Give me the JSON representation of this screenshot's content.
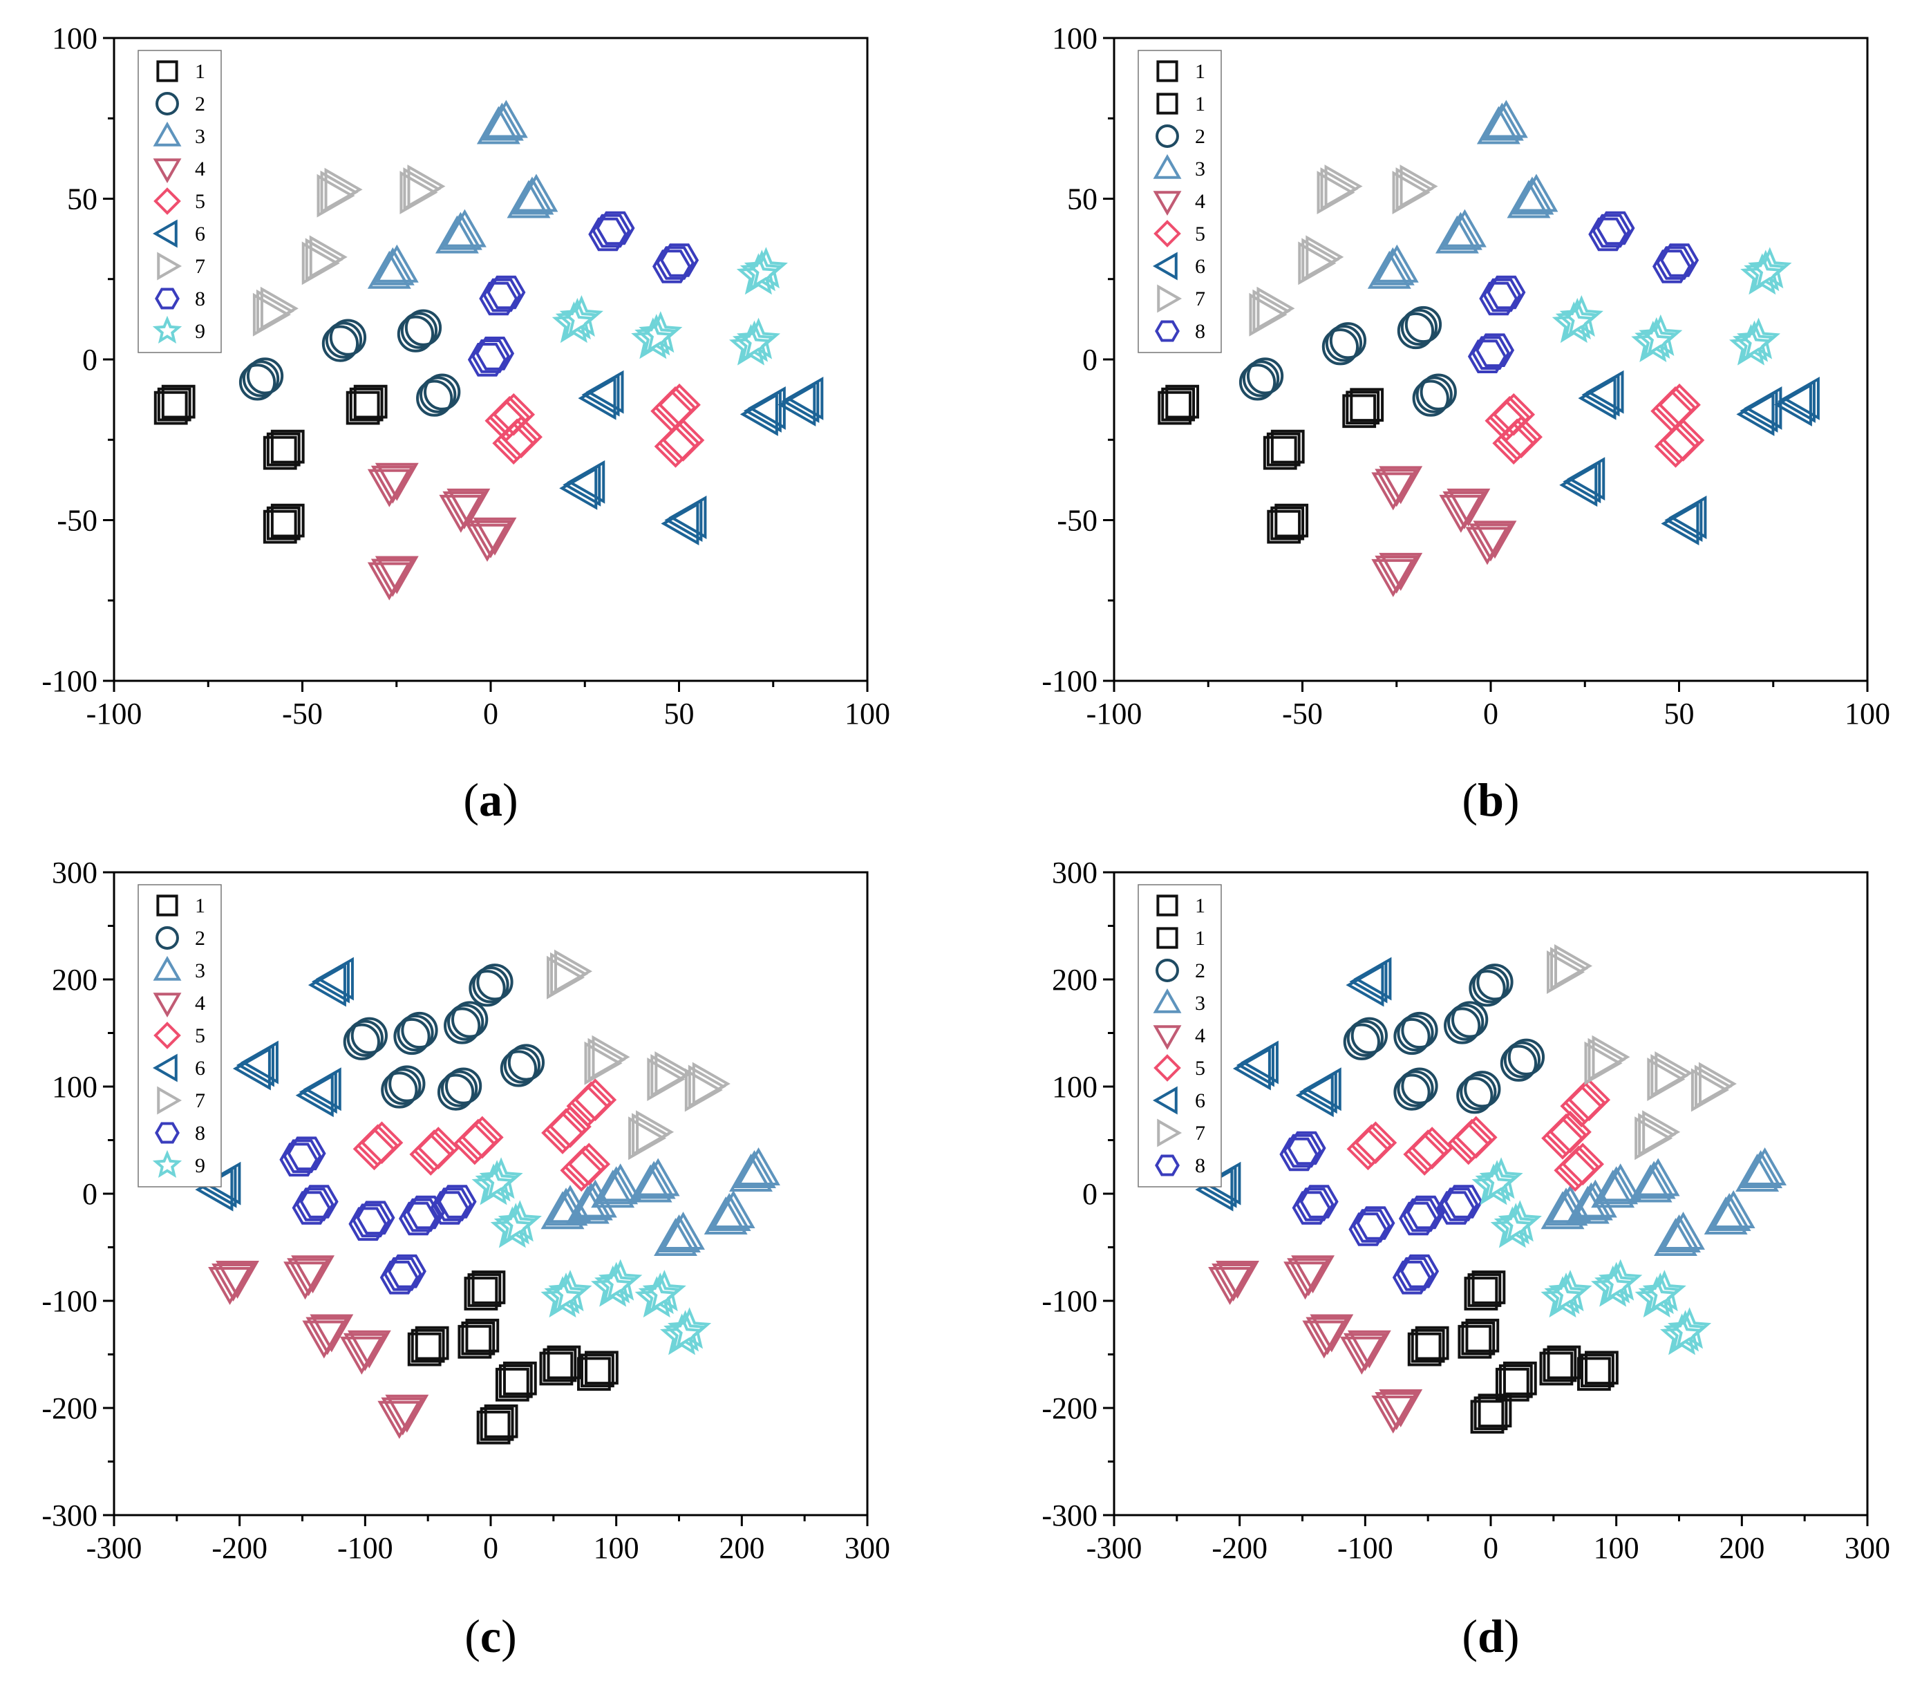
{
  "colors": {
    "1": "#111111",
    "2": "#1f4b63",
    "3": "#5e94bd",
    "4": "#c15b74",
    "5": "#ef4e6e",
    "6": "#1c6396",
    "7": "#b3b3b3",
    "8": "#3a3dbd",
    "9": "#6fd4d8"
  },
  "marker_shapes": {
    "1": "square",
    "2": "circle",
    "3": "triangle-up",
    "4": "triangle-down",
    "5": "diamond",
    "6": "triangle-left",
    "7": "triangle-right",
    "8": "hexagon",
    "9": "star"
  },
  "chart_data": [
    {
      "panel": "a",
      "caption_letter": "a",
      "type": "scatter",
      "xlim": [
        -100,
        100
      ],
      "ylim": [
        -100,
        100
      ],
      "xticks": [
        -100,
        -50,
        0,
        50,
        100
      ],
      "yticks": [
        -100,
        -50,
        0,
        50,
        100
      ],
      "legend": {
        "placement": "top-left",
        "entries": [
          {
            "label": "1",
            "cls": "1"
          },
          {
            "label": "2",
            "cls": "2"
          },
          {
            "label": "3",
            "cls": "3"
          },
          {
            "label": "4",
            "cls": "4"
          },
          {
            "label": "5",
            "cls": "5"
          },
          {
            "label": "6",
            "cls": "6"
          },
          {
            "label": "7",
            "cls": "7"
          },
          {
            "label": "8",
            "cls": "8"
          },
          {
            "label": "9",
            "cls": "9"
          }
        ]
      },
      "clusters": [
        {
          "cls": "1",
          "x": -84,
          "y": -14
        },
        {
          "cls": "1",
          "x": -55,
          "y": -28
        },
        {
          "cls": "1",
          "x": -33,
          "y": -14
        },
        {
          "cls": "1",
          "x": -55,
          "y": -51
        },
        {
          "cls": "2",
          "x": -61,
          "y": -6
        },
        {
          "cls": "2",
          "x": -39,
          "y": 6
        },
        {
          "cls": "2",
          "x": -19,
          "y": 9
        },
        {
          "cls": "2",
          "x": -14,
          "y": -11
        },
        {
          "cls": "3",
          "x": 3,
          "y": 73
        },
        {
          "cls": "3",
          "x": 11,
          "y": 50
        },
        {
          "cls": "3",
          "x": -8,
          "y": 39
        },
        {
          "cls": "3",
          "x": -26,
          "y": 28
        },
        {
          "cls": "4",
          "x": -26,
          "y": -38
        },
        {
          "cls": "4",
          "x": -26,
          "y": -67
        },
        {
          "cls": "4",
          "x": -7,
          "y": -46
        },
        {
          "cls": "4",
          "x": 0,
          "y": -55
        },
        {
          "cls": "5",
          "x": 5,
          "y": -18
        },
        {
          "cls": "5",
          "x": 7,
          "y": -25
        },
        {
          "cls": "5",
          "x": 49,
          "y": -15
        },
        {
          "cls": "5",
          "x": 50,
          "y": -26
        },
        {
          "cls": "6",
          "x": 30,
          "y": -11
        },
        {
          "cls": "6",
          "x": 25,
          "y": -39
        },
        {
          "cls": "6",
          "x": 73,
          "y": -16
        },
        {
          "cls": "6",
          "x": 83,
          "y": -13
        },
        {
          "cls": "6",
          "x": 52,
          "y": -50
        },
        {
          "cls": "7",
          "x": -58,
          "y": 15
        },
        {
          "cls": "7",
          "x": -45,
          "y": 31
        },
        {
          "cls": "7",
          "x": -41,
          "y": 52
        },
        {
          "cls": "7",
          "x": -19,
          "y": 53
        },
        {
          "cls": "8",
          "x": 3,
          "y": 20
        },
        {
          "cls": "8",
          "x": 32,
          "y": 40
        },
        {
          "cls": "8",
          "x": 49,
          "y": 30
        },
        {
          "cls": "8",
          "x": 0,
          "y": 1
        },
        {
          "cls": "9",
          "x": 23,
          "y": 12
        },
        {
          "cls": "9",
          "x": 44,
          "y": 7
        },
        {
          "cls": "9",
          "x": 72,
          "y": 27
        },
        {
          "cls": "9",
          "x": 70,
          "y": 5
        }
      ]
    },
    {
      "panel": "b",
      "caption_letter": "b",
      "type": "scatter",
      "xlim": [
        -100,
        100
      ],
      "ylim": [
        -100,
        100
      ],
      "xticks": [
        -100,
        -50,
        0,
        50,
        100
      ],
      "yticks": [
        -100,
        -50,
        0,
        50,
        100
      ],
      "legend": {
        "placement": "top-left",
        "entries": [
          {
            "label": "1",
            "cls": "1"
          },
          {
            "label": "1",
            "cls": "1"
          },
          {
            "label": "2",
            "cls": "2"
          },
          {
            "label": "3",
            "cls": "3"
          },
          {
            "label": "4",
            "cls": "4"
          },
          {
            "label": "5",
            "cls": "5"
          },
          {
            "label": "6",
            "cls": "6"
          },
          {
            "label": "7",
            "cls": "7"
          },
          {
            "label": "8",
            "cls": "8"
          }
        ]
      },
      "clusters": [
        {
          "cls": "1",
          "x": -83,
          "y": -14
        },
        {
          "cls": "1",
          "x": -55,
          "y": -28
        },
        {
          "cls": "1",
          "x": -34,
          "y": -15
        },
        {
          "cls": "1",
          "x": -54,
          "y": -51
        },
        {
          "cls": "2",
          "x": -61,
          "y": -6
        },
        {
          "cls": "2",
          "x": -39,
          "y": 5
        },
        {
          "cls": "2",
          "x": -19,
          "y": 10
        },
        {
          "cls": "2",
          "x": -15,
          "y": -11
        },
        {
          "cls": "3",
          "x": 3,
          "y": 73
        },
        {
          "cls": "3",
          "x": 11,
          "y": 50
        },
        {
          "cls": "3",
          "x": -8,
          "y": 39
        },
        {
          "cls": "3",
          "x": -26,
          "y": 28
        },
        {
          "cls": "4",
          "x": -25,
          "y": -39
        },
        {
          "cls": "4",
          "x": -25,
          "y": -66
        },
        {
          "cls": "4",
          "x": -7,
          "y": -46
        },
        {
          "cls": "4",
          "x": 0,
          "y": -56
        },
        {
          "cls": "5",
          "x": 5,
          "y": -18
        },
        {
          "cls": "5",
          "x": 7,
          "y": -25
        },
        {
          "cls": "5",
          "x": 49,
          "y": -15
        },
        {
          "cls": "5",
          "x": 50,
          "y": -26
        },
        {
          "cls": "6",
          "x": 30,
          "y": -11
        },
        {
          "cls": "6",
          "x": 25,
          "y": -38
        },
        {
          "cls": "6",
          "x": 72,
          "y": -16
        },
        {
          "cls": "6",
          "x": 82,
          "y": -13
        },
        {
          "cls": "6",
          "x": 52,
          "y": -50
        },
        {
          "cls": "7",
          "x": -59,
          "y": 15
        },
        {
          "cls": "7",
          "x": -46,
          "y": 31
        },
        {
          "cls": "7",
          "x": -41,
          "y": 53
        },
        {
          "cls": "7",
          "x": -21,
          "y": 53
        },
        {
          "cls": "8",
          "x": 3,
          "y": 20
        },
        {
          "cls": "8",
          "x": 32,
          "y": 40
        },
        {
          "cls": "8",
          "x": 49,
          "y": 30
        },
        {
          "cls": "8",
          "x": 0,
          "y": 2
        },
        {
          "cls": "9",
          "x": 23,
          "y": 12
        },
        {
          "cls": "9",
          "x": 44,
          "y": 6
        },
        {
          "cls": "9",
          "x": 73,
          "y": 27
        },
        {
          "cls": "9",
          "x": 70,
          "y": 5
        }
      ]
    },
    {
      "panel": "c",
      "caption_letter": "c",
      "type": "scatter",
      "xlim": [
        -300,
        300
      ],
      "ylim": [
        -300,
        300
      ],
      "xticks": [
        -300,
        -200,
        -100,
        0,
        100,
        200,
        300
      ],
      "yticks": [
        -300,
        -200,
        -100,
        0,
        100,
        200,
        300
      ],
      "legend": {
        "placement": "top-left",
        "entries": [
          {
            "label": "1",
            "cls": "1"
          },
          {
            "label": "2",
            "cls": "2"
          },
          {
            "label": "3",
            "cls": "3"
          },
          {
            "label": "4",
            "cls": "4"
          },
          {
            "label": "5",
            "cls": "5"
          },
          {
            "label": "6",
            "cls": "6"
          },
          {
            "label": "7",
            "cls": "7"
          },
          {
            "label": "8",
            "cls": "8"
          },
          {
            "label": "9",
            "cls": "9"
          }
        ]
      },
      "clusters": [
        {
          "cls": "1",
          "x": -5,
          "y": -90
        },
        {
          "cls": "1",
          "x": -10,
          "y": -135
        },
        {
          "cls": "1",
          "x": -50,
          "y": -142
        },
        {
          "cls": "1",
          "x": 20,
          "y": -175
        },
        {
          "cls": "1",
          "x": 55,
          "y": -160
        },
        {
          "cls": "1",
          "x": 85,
          "y": -165
        },
        {
          "cls": "1",
          "x": 5,
          "y": -215
        },
        {
          "cls": "2",
          "x": -100,
          "y": 145
        },
        {
          "cls": "2",
          "x": -60,
          "y": 150
        },
        {
          "cls": "2",
          "x": -20,
          "y": 160
        },
        {
          "cls": "2",
          "x": 0,
          "y": 195
        },
        {
          "cls": "2",
          "x": -70,
          "y": 100
        },
        {
          "cls": "2",
          "x": -25,
          "y": 98
        },
        {
          "cls": "2",
          "x": 25,
          "y": 120
        },
        {
          "cls": "3",
          "x": 60,
          "y": -15
        },
        {
          "cls": "3",
          "x": 100,
          "y": 5
        },
        {
          "cls": "3",
          "x": 130,
          "y": 10
        },
        {
          "cls": "3",
          "x": 150,
          "y": -40
        },
        {
          "cls": "3",
          "x": 190,
          "y": -20
        },
        {
          "cls": "3",
          "x": 210,
          "y": 20
        },
        {
          "cls": "3",
          "x": 80,
          "y": -10
        },
        {
          "cls": "4",
          "x": -205,
          "y": -80
        },
        {
          "cls": "4",
          "x": -145,
          "y": -75
        },
        {
          "cls": "4",
          "x": -130,
          "y": -130
        },
        {
          "cls": "4",
          "x": -100,
          "y": -145
        },
        {
          "cls": "4",
          "x": -70,
          "y": -205
        },
        {
          "cls": "5",
          "x": -90,
          "y": 45
        },
        {
          "cls": "5",
          "x": -45,
          "y": 40
        },
        {
          "cls": "5",
          "x": -10,
          "y": 50
        },
        {
          "cls": "5",
          "x": 60,
          "y": 60
        },
        {
          "cls": "5",
          "x": 75,
          "y": 25
        },
        {
          "cls": "5",
          "x": 80,
          "y": 85
        },
        {
          "cls": "6",
          "x": -215,
          "y": 7
        },
        {
          "cls": "6",
          "x": -185,
          "y": 120
        },
        {
          "cls": "6",
          "x": -135,
          "y": 95
        },
        {
          "cls": "6",
          "x": -125,
          "y": 198
        },
        {
          "cls": "7",
          "x": 60,
          "y": 205
        },
        {
          "cls": "7",
          "x": 90,
          "y": 125
        },
        {
          "cls": "7",
          "x": 140,
          "y": 110
        },
        {
          "cls": "7",
          "x": 170,
          "y": 100
        },
        {
          "cls": "7",
          "x": 125,
          "y": 55
        },
        {
          "cls": "8",
          "x": -150,
          "y": 35
        },
        {
          "cls": "8",
          "x": -140,
          "y": -10
        },
        {
          "cls": "8",
          "x": -95,
          "y": -25
        },
        {
          "cls": "8",
          "x": -55,
          "y": -20
        },
        {
          "cls": "8",
          "x": -70,
          "y": -75
        },
        {
          "cls": "8",
          "x": -30,
          "y": -10
        },
        {
          "cls": "9",
          "x": 5,
          "y": 10
        },
        {
          "cls": "9",
          "x": 20,
          "y": -30
        },
        {
          "cls": "9",
          "x": 60,
          "y": -95
        },
        {
          "cls": "9",
          "x": 100,
          "y": -85
        },
        {
          "cls": "9",
          "x": 135,
          "y": -95
        },
        {
          "cls": "9",
          "x": 155,
          "y": -130
        }
      ]
    },
    {
      "panel": "d",
      "caption_letter": "d",
      "type": "scatter",
      "xlim": [
        -300,
        300
      ],
      "ylim": [
        -300,
        300
      ],
      "xticks": [
        -300,
        -200,
        -100,
        0,
        100,
        200,
        300
      ],
      "yticks": [
        -300,
        -200,
        -100,
        0,
        100,
        200,
        300
      ],
      "legend": {
        "placement": "top-left",
        "entries": [
          {
            "label": "1",
            "cls": "1"
          },
          {
            "label": "1",
            "cls": "1"
          },
          {
            "label": "2",
            "cls": "2"
          },
          {
            "label": "3",
            "cls": "3"
          },
          {
            "label": "4",
            "cls": "4"
          },
          {
            "label": "5",
            "cls": "5"
          },
          {
            "label": "6",
            "cls": "6"
          },
          {
            "label": "7",
            "cls": "7"
          },
          {
            "label": "8",
            "cls": "8"
          }
        ]
      },
      "clusters": [
        {
          "cls": "1",
          "x": -5,
          "y": -90
        },
        {
          "cls": "1",
          "x": -10,
          "y": -135
        },
        {
          "cls": "1",
          "x": -50,
          "y": -142
        },
        {
          "cls": "1",
          "x": 20,
          "y": -175
        },
        {
          "cls": "1",
          "x": 55,
          "y": -160
        },
        {
          "cls": "1",
          "x": 85,
          "y": -165
        },
        {
          "cls": "1",
          "x": 0,
          "y": -205
        },
        {
          "cls": "2",
          "x": -100,
          "y": 145
        },
        {
          "cls": "2",
          "x": -60,
          "y": 150
        },
        {
          "cls": "2",
          "x": -20,
          "y": 160
        },
        {
          "cls": "2",
          "x": 0,
          "y": 195
        },
        {
          "cls": "2",
          "x": -60,
          "y": 98
        },
        {
          "cls": "2",
          "x": -10,
          "y": 95
        },
        {
          "cls": "2",
          "x": 25,
          "y": 125
        },
        {
          "cls": "3",
          "x": 60,
          "y": -15
        },
        {
          "cls": "3",
          "x": 100,
          "y": 5
        },
        {
          "cls": "3",
          "x": 130,
          "y": 10
        },
        {
          "cls": "3",
          "x": 150,
          "y": -40
        },
        {
          "cls": "3",
          "x": 190,
          "y": -20
        },
        {
          "cls": "3",
          "x": 215,
          "y": 20
        },
        {
          "cls": "3",
          "x": 80,
          "y": -10
        },
        {
          "cls": "4",
          "x": -205,
          "y": -80
        },
        {
          "cls": "4",
          "x": -145,
          "y": -75
        },
        {
          "cls": "4",
          "x": -130,
          "y": -130
        },
        {
          "cls": "4",
          "x": -100,
          "y": -145
        },
        {
          "cls": "4",
          "x": -75,
          "y": -200
        },
        {
          "cls": "5",
          "x": -95,
          "y": 45
        },
        {
          "cls": "5",
          "x": -50,
          "y": 40
        },
        {
          "cls": "5",
          "x": -15,
          "y": 50
        },
        {
          "cls": "5",
          "x": 60,
          "y": 55
        },
        {
          "cls": "5",
          "x": 70,
          "y": 25
        },
        {
          "cls": "5",
          "x": 75,
          "y": 85
        },
        {
          "cls": "6",
          "x": -215,
          "y": 7
        },
        {
          "cls": "6",
          "x": -185,
          "y": 120
        },
        {
          "cls": "6",
          "x": -135,
          "y": 95
        },
        {
          "cls": "6",
          "x": -95,
          "y": 198
        },
        {
          "cls": "7",
          "x": 60,
          "y": 210
        },
        {
          "cls": "7",
          "x": 90,
          "y": 125
        },
        {
          "cls": "7",
          "x": 140,
          "y": 110
        },
        {
          "cls": "7",
          "x": 175,
          "y": 100
        },
        {
          "cls": "7",
          "x": 130,
          "y": 55
        },
        {
          "cls": "8",
          "x": -150,
          "y": 40
        },
        {
          "cls": "8",
          "x": -140,
          "y": -10
        },
        {
          "cls": "8",
          "x": -95,
          "y": -30
        },
        {
          "cls": "8",
          "x": -55,
          "y": -20
        },
        {
          "cls": "8",
          "x": -60,
          "y": -75
        },
        {
          "cls": "8",
          "x": -25,
          "y": -10
        },
        {
          "cls": "9",
          "x": 5,
          "y": 10
        },
        {
          "cls": "9",
          "x": 20,
          "y": -30
        },
        {
          "cls": "9",
          "x": 60,
          "y": -95
        },
        {
          "cls": "9",
          "x": 100,
          "y": -85
        },
        {
          "cls": "9",
          "x": 135,
          "y": -95
        },
        {
          "cls": "9",
          "x": 155,
          "y": -130
        }
      ]
    }
  ]
}
